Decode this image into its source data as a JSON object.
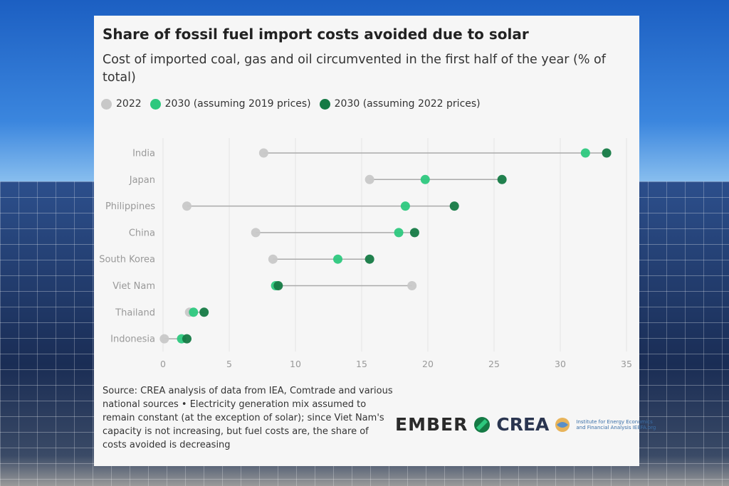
{
  "title": "Share of fossil fuel import costs avoided due to solar",
  "subtitle": "Cost of imported coal, gas and oil circumvented in the first half of the year (% of total)",
  "source": "Source: CREA analysis of data from IEA, Comtrade and various national sources • Electricity generation mix assumed to remain constant (at the exception of solar); since Viet Nam's capacity is not increasing, but fuel costs are, the share of costs avoided is decreasing",
  "logos": {
    "ember": "EMBER",
    "crea": "CREA",
    "ieefa": "Institute for Energy Economics and Financial Analysis IEEFA.org"
  },
  "chart_data": {
    "type": "dot-range",
    "title": "Share of fossil fuel import costs avoided due to solar",
    "xlabel": "",
    "ylabel": "",
    "xlim": [
      0,
      35
    ],
    "xticks": [
      0,
      5,
      10,
      15,
      20,
      25,
      30,
      35
    ],
    "grid": "vertical",
    "legend_placement": "top-left",
    "categories": [
      "India",
      "Japan",
      "Philippines",
      "China",
      "South Korea",
      "Viet Nam",
      "Thailand",
      "Indonesia"
    ],
    "series": [
      {
        "name": "2022",
        "color": "#c8c8c8",
        "values": [
          7.6,
          15.6,
          1.8,
          7.0,
          8.3,
          18.8,
          2.0,
          0.1
        ]
      },
      {
        "name": "2030 (assuming 2019 prices)",
        "color": "#2dc87e",
        "values": [
          31.9,
          19.8,
          18.3,
          17.8,
          13.2,
          8.5,
          2.3,
          1.4
        ]
      },
      {
        "name": "2030 (assuming 2022 prices)",
        "color": "#157a45",
        "values": [
          33.5,
          25.6,
          22.0,
          19.0,
          15.6,
          8.7,
          3.1,
          1.8
        ]
      }
    ]
  }
}
